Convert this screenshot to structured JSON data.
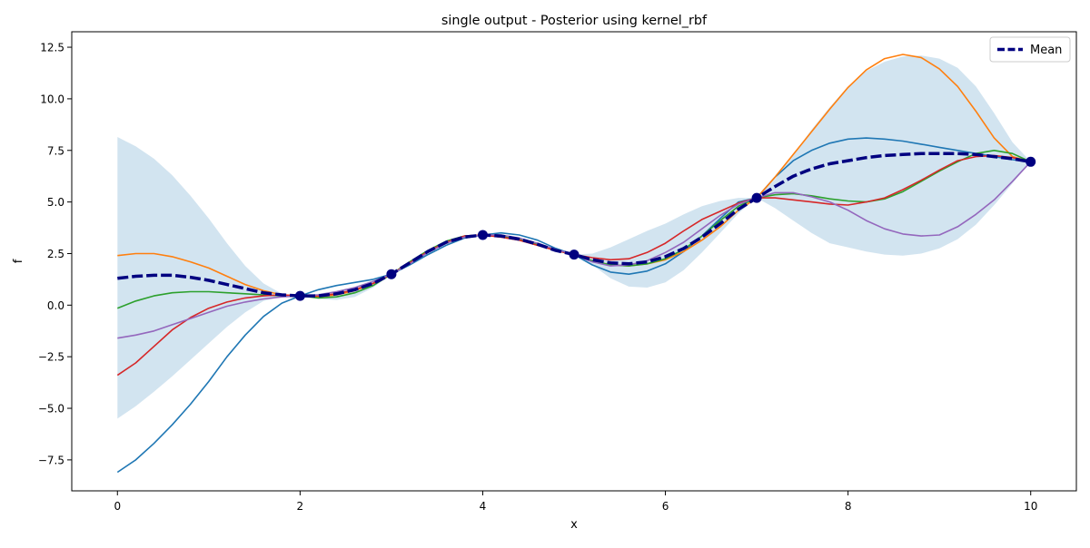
{
  "chart_data": {
    "type": "line",
    "title": "single output - Posterior using kernel_rbf",
    "xlabel": "x",
    "ylabel": "f",
    "xlim": [
      -0.5,
      10.5
    ],
    "ylim": [
      -9.0,
      13.25
    ],
    "grid": false,
    "legend": {
      "placement": "top-right",
      "entries": [
        "Mean"
      ]
    },
    "xticks": [
      0,
      2,
      4,
      6,
      8,
      10
    ],
    "xtick_labels": [
      "0",
      "2",
      "4",
      "6",
      "8",
      "10"
    ],
    "yticks": [
      -7.5,
      -5.0,
      -2.5,
      0.0,
      2.5,
      5.0,
      7.5,
      10.0,
      12.5
    ],
    "ytick_labels": [
      "−7.5",
      "−5.0",
      "−2.5",
      "0.0",
      "2.5",
      "5.0",
      "7.5",
      "10.0",
      "12.5"
    ],
    "x": [
      0,
      0.2,
      0.4,
      0.6,
      0.8,
      1.0,
      1.2,
      1.4,
      1.6,
      1.8,
      2.0,
      2.2,
      2.4,
      2.6,
      2.8,
      3.0,
      3.2,
      3.4,
      3.6,
      3.8,
      4.0,
      4.2,
      4.4,
      4.6,
      4.8,
      5.0,
      5.2,
      5.4,
      5.6,
      5.8,
      6.0,
      6.2,
      6.4,
      6.6,
      6.8,
      7.0,
      7.2,
      7.4,
      7.6,
      7.8,
      8.0,
      8.2,
      8.4,
      8.6,
      8.8,
      9.0,
      9.2,
      9.4,
      9.6,
      9.8,
      10.0
    ],
    "band": {
      "upper": [
        8.15,
        7.7,
        7.1,
        6.3,
        5.3,
        4.2,
        3.0,
        1.9,
        1.05,
        0.55,
        0.45,
        0.55,
        0.7,
        0.9,
        1.2,
        1.5,
        2.05,
        2.65,
        3.1,
        3.35,
        3.4,
        3.35,
        3.2,
        2.95,
        2.65,
        2.45,
        2.5,
        2.8,
        3.2,
        3.6,
        3.95,
        4.4,
        4.8,
        5.05,
        5.2,
        5.2,
        6.1,
        7.3,
        8.5,
        9.6,
        10.6,
        11.35,
        11.8,
        12.05,
        12.1,
        11.95,
        11.5,
        10.6,
        9.3,
        7.9,
        6.95
      ],
      "lower": [
        -5.5,
        -4.9,
        -4.2,
        -3.45,
        -2.65,
        -1.85,
        -1.05,
        -0.35,
        0.2,
        0.4,
        0.45,
        0.3,
        0.25,
        0.4,
        0.85,
        1.5,
        2.0,
        2.55,
        3.05,
        3.3,
        3.4,
        3.35,
        3.2,
        2.95,
        2.65,
        2.45,
        1.95,
        1.3,
        0.9,
        0.85,
        1.1,
        1.7,
        2.55,
        3.5,
        4.45,
        5.2,
        4.7,
        4.1,
        3.5,
        3.0,
        2.8,
        2.6,
        2.45,
        2.4,
        2.5,
        2.75,
        3.2,
        3.9,
        4.85,
        5.9,
        6.95
      ]
    },
    "series": [
      {
        "color": "#1f77b4",
        "y": [
          -8.1,
          -7.5,
          -6.7,
          -5.8,
          -4.8,
          -3.7,
          -2.5,
          -1.45,
          -0.55,
          0.1,
          0.45,
          0.75,
          0.95,
          1.1,
          1.25,
          1.5,
          1.95,
          2.45,
          2.9,
          3.25,
          3.4,
          3.5,
          3.4,
          3.15,
          2.75,
          2.45,
          1.95,
          1.6,
          1.5,
          1.65,
          2.0,
          2.6,
          3.35,
          4.2,
          5.0,
          5.2,
          6.2,
          7.0,
          7.5,
          7.85,
          8.05,
          8.1,
          8.05,
          7.95,
          7.8,
          7.65,
          7.5,
          7.35,
          7.2,
          7.05,
          6.95
        ]
      },
      {
        "color": "#ff7f0e",
        "y": [
          2.4,
          2.5,
          2.5,
          2.35,
          2.1,
          1.8,
          1.4,
          1.0,
          0.7,
          0.5,
          0.45,
          0.4,
          0.5,
          0.7,
          1.05,
          1.5,
          2.05,
          2.6,
          3.0,
          3.3,
          3.4,
          3.3,
          3.15,
          2.9,
          2.65,
          2.45,
          2.15,
          1.95,
          1.9,
          2.0,
          2.2,
          2.6,
          3.15,
          3.8,
          4.6,
          5.2,
          6.2,
          7.3,
          8.4,
          9.5,
          10.55,
          11.4,
          11.95,
          12.15,
          12.0,
          11.45,
          10.6,
          9.4,
          8.1,
          7.2,
          6.95
        ]
      },
      {
        "color": "#2ca02c",
        "y": [
          -0.15,
          0.2,
          0.45,
          0.6,
          0.65,
          0.65,
          0.6,
          0.55,
          0.5,
          0.45,
          0.45,
          0.35,
          0.4,
          0.6,
          0.95,
          1.5,
          2.1,
          2.65,
          3.1,
          3.35,
          3.4,
          3.35,
          3.2,
          2.95,
          2.65,
          2.45,
          2.15,
          1.95,
          1.9,
          2.0,
          2.25,
          2.7,
          3.35,
          4.1,
          4.8,
          5.2,
          5.35,
          5.4,
          5.3,
          5.15,
          5.05,
          5.0,
          5.15,
          5.5,
          6.0,
          6.5,
          6.95,
          7.35,
          7.5,
          7.35,
          6.95
        ]
      },
      {
        "color": "#d62728",
        "y": [
          -3.4,
          -2.8,
          -2.0,
          -1.2,
          -0.6,
          -0.15,
          0.15,
          0.35,
          0.45,
          0.5,
          0.45,
          0.45,
          0.55,
          0.75,
          1.05,
          1.5,
          2.05,
          2.6,
          3.05,
          3.35,
          3.4,
          3.3,
          3.15,
          2.9,
          2.65,
          2.45,
          2.3,
          2.2,
          2.25,
          2.55,
          3.0,
          3.6,
          4.15,
          4.55,
          4.95,
          5.2,
          5.2,
          5.1,
          5.0,
          4.9,
          4.85,
          5.0,
          5.2,
          5.6,
          6.05,
          6.55,
          7.0,
          7.2,
          7.25,
          7.15,
          6.95
        ]
      },
      {
        "color": "#9467bd",
        "y": [
          -1.6,
          -1.45,
          -1.25,
          -0.95,
          -0.65,
          -0.35,
          -0.05,
          0.15,
          0.3,
          0.4,
          0.45,
          0.5,
          0.65,
          0.85,
          1.15,
          1.5,
          2.0,
          2.55,
          3.0,
          3.3,
          3.4,
          3.4,
          3.25,
          3.0,
          2.7,
          2.45,
          2.1,
          1.9,
          1.95,
          2.15,
          2.55,
          3.05,
          3.7,
          4.35,
          4.9,
          5.2,
          5.45,
          5.45,
          5.25,
          5.0,
          4.6,
          4.1,
          3.7,
          3.45,
          3.35,
          3.4,
          3.8,
          4.4,
          5.1,
          6.0,
          6.95
        ]
      },
      {
        "name": "Mean",
        "color": "#000080",
        "dashed": true,
        "y": [
          1.3,
          1.4,
          1.45,
          1.45,
          1.35,
          1.2,
          1.0,
          0.8,
          0.6,
          0.5,
          0.45,
          0.45,
          0.55,
          0.75,
          1.05,
          1.5,
          2.05,
          2.6,
          3.05,
          3.3,
          3.4,
          3.35,
          3.2,
          2.95,
          2.65,
          2.45,
          2.2,
          2.05,
          2.0,
          2.1,
          2.35,
          2.75,
          3.3,
          3.95,
          4.65,
          5.2,
          5.75,
          6.25,
          6.6,
          6.85,
          7.0,
          7.15,
          7.25,
          7.3,
          7.35,
          7.35,
          7.35,
          7.3,
          7.2,
          7.1,
          6.95
        ]
      }
    ],
    "observations": {
      "color": "#000080",
      "x": [
        2,
        3,
        4,
        5,
        7,
        10
      ],
      "y": [
        0.45,
        1.5,
        3.4,
        2.45,
        5.2,
        6.95
      ]
    }
  }
}
